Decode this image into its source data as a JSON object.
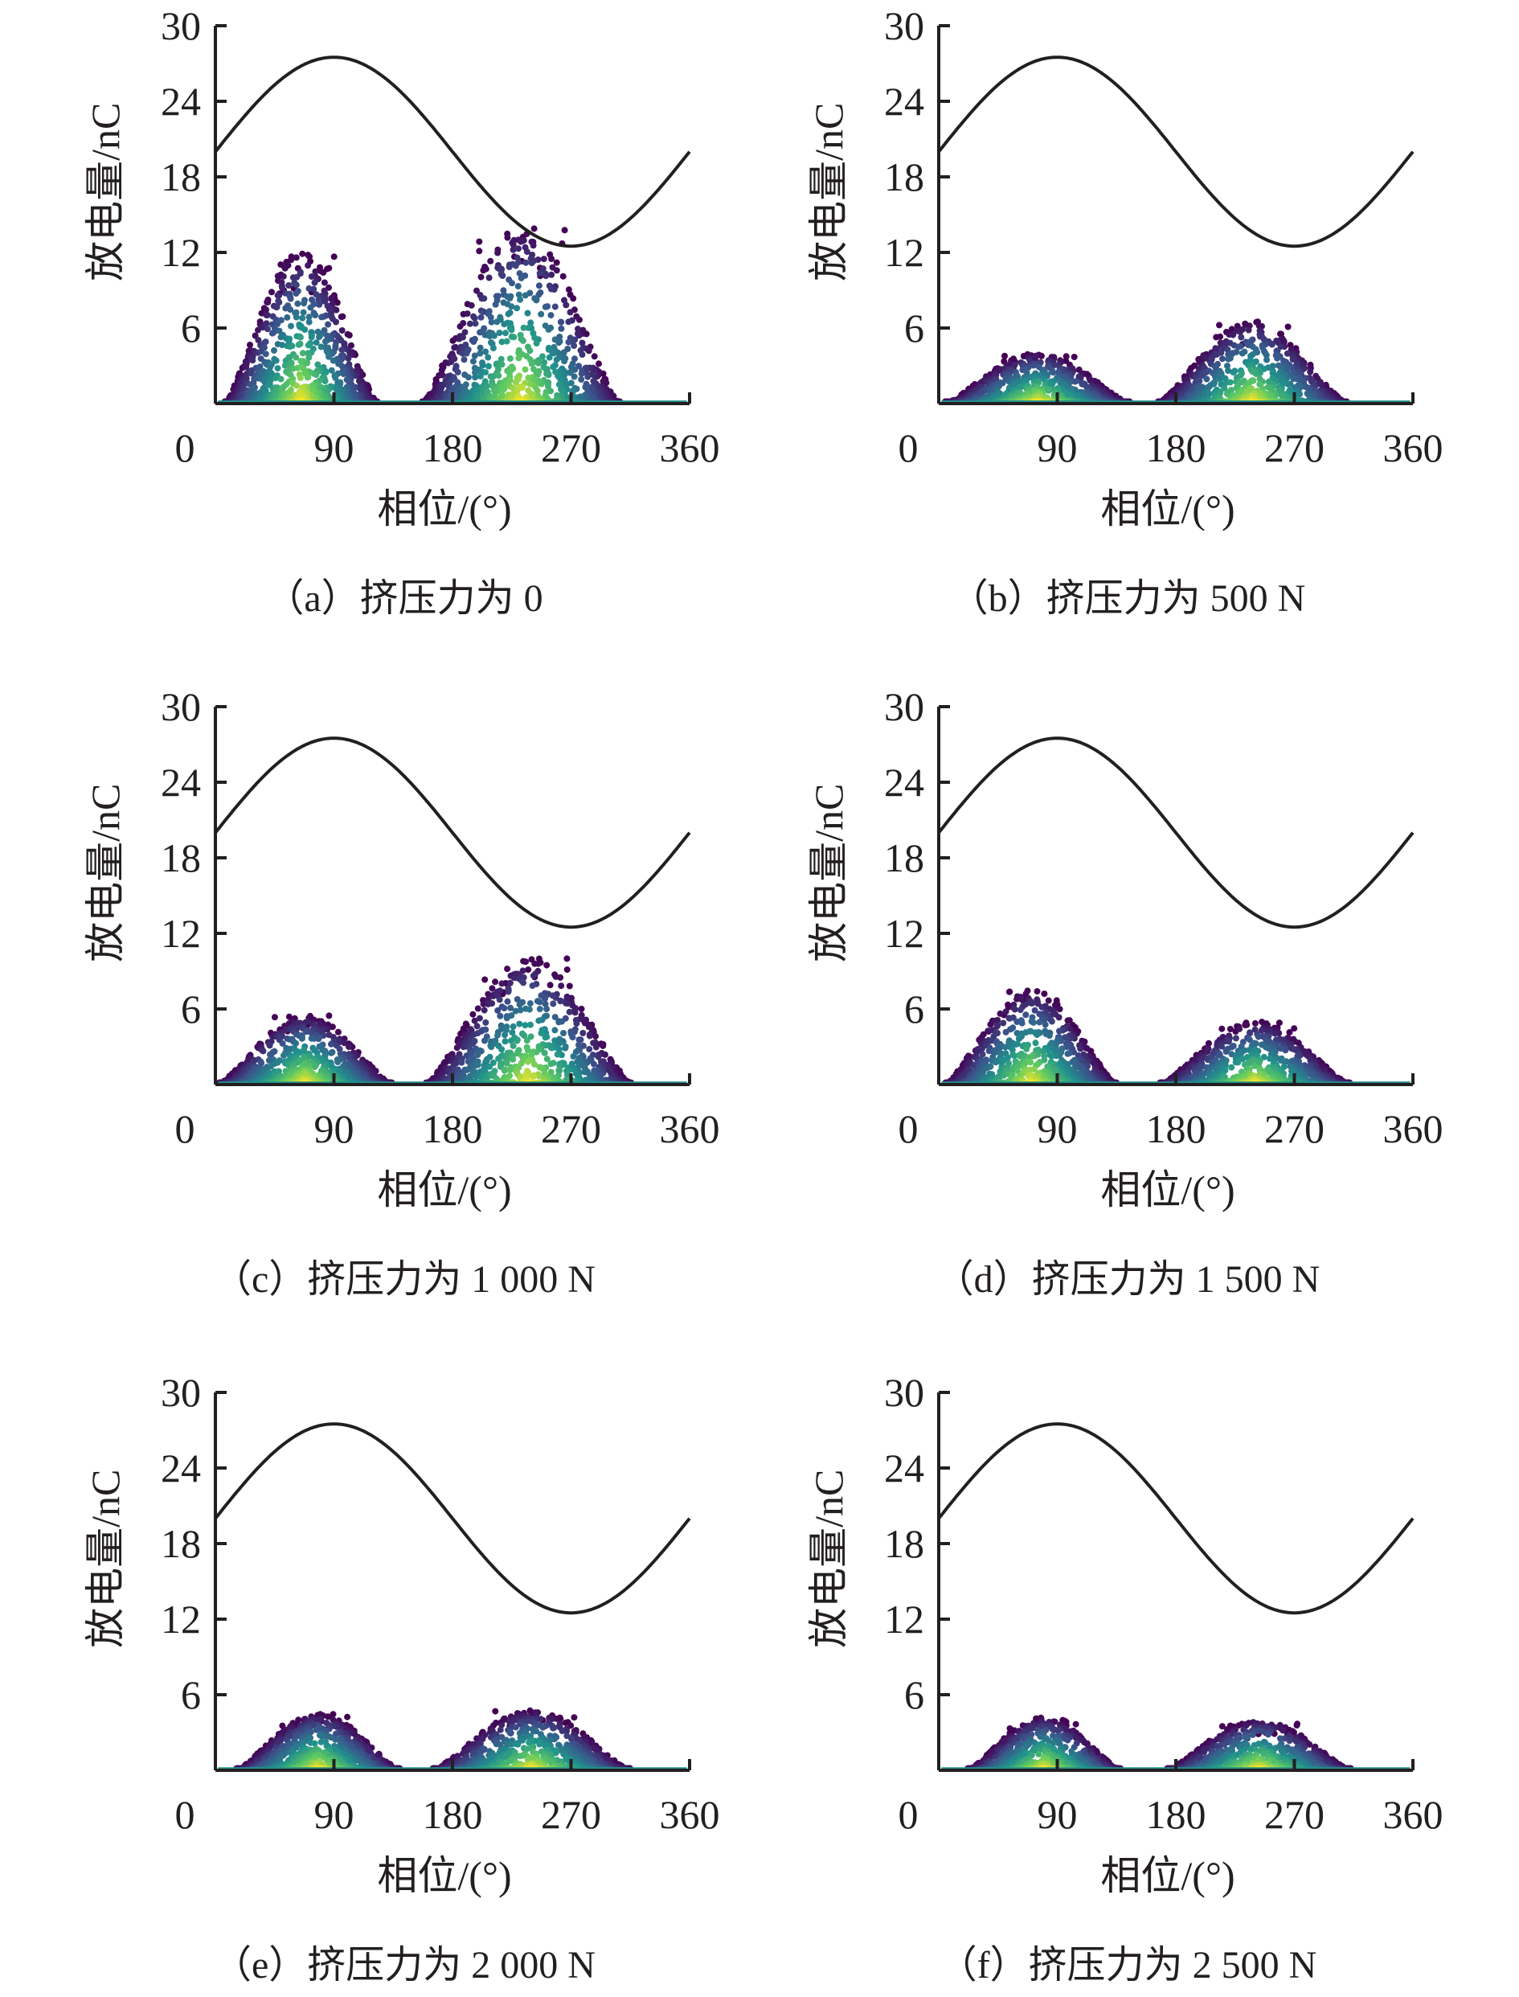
{
  "figure": {
    "panel_count": 6
  },
  "chart_data": [
    {
      "type": "scatter",
      "caption": "（a）挤压力为 0",
      "xlabel": "相位/(°)",
      "ylabel": "放电量/nC",
      "xlim": [
        0,
        360
      ],
      "ylim": [
        0,
        30
      ],
      "xticks": [
        "0",
        "90",
        "180",
        "270",
        "360"
      ],
      "yticks": [
        "6",
        "12",
        "18",
        "24",
        "30"
      ],
      "reference_curve": {
        "kind": "sine",
        "offset": 20,
        "amplitude": 7.5,
        "period": 360
      },
      "clusters": [
        {
          "center": 65,
          "half_width": 58,
          "peak": 12.0
        },
        {
          "center": 232,
          "half_width": 75,
          "peak": 14.0
        }
      ],
      "colormap": [
        "#440154",
        "#3b528b",
        "#21918c",
        "#5ec962",
        "#fde725"
      ]
    },
    {
      "type": "scatter",
      "caption": "（b）挤压力为 500 N",
      "xlabel": "相位/(°)",
      "ylabel": "放电量/nC",
      "xlim": [
        0,
        360
      ],
      "ylim": [
        0,
        30
      ],
      "xticks": [
        "0",
        "90",
        "180",
        "270",
        "360"
      ],
      "yticks": [
        "6",
        "12",
        "18",
        "24",
        "30"
      ],
      "reference_curve": {
        "kind": "sine",
        "offset": 20,
        "amplitude": 7.5,
        "period": 360
      },
      "clusters": [
        {
          "center": 75,
          "half_width": 70,
          "peak": 4.0
        },
        {
          "center": 238,
          "half_width": 72,
          "peak": 6.5
        }
      ],
      "colormap": [
        "#440154",
        "#3b528b",
        "#21918c",
        "#5ec962",
        "#fde725"
      ]
    },
    {
      "type": "scatter",
      "caption": "（c）挤压力为 1 000 N",
      "xlabel": "相位/(°)",
      "ylabel": "放电量/nC",
      "xlim": [
        0,
        360
      ],
      "ylim": [
        0,
        30
      ],
      "xticks": [
        "0",
        "90",
        "180",
        "270",
        "360"
      ],
      "yticks": [
        "6",
        "12",
        "18",
        "24",
        "30"
      ],
      "reference_curve": {
        "kind": "sine",
        "offset": 20,
        "amplitude": 7.5,
        "period": 360
      },
      "clusters": [
        {
          "center": 68,
          "half_width": 66,
          "peak": 5.5
        },
        {
          "center": 238,
          "half_width": 78,
          "peak": 10.0
        }
      ],
      "colormap": [
        "#440154",
        "#3b528b",
        "#21918c",
        "#5ec962",
        "#fde725"
      ]
    },
    {
      "type": "scatter",
      "caption": "（d）挤压力为 1 500 N",
      "xlabel": "相位/(°)",
      "ylabel": "放电量/nC",
      "xlim": [
        0,
        360
      ],
      "ylim": [
        0,
        30
      ],
      "xticks": [
        "0",
        "90",
        "180",
        "270",
        "360"
      ],
      "yticks": [
        "6",
        "12",
        "18",
        "24",
        "30"
      ],
      "reference_curve": {
        "kind": "sine",
        "offset": 20,
        "amplitude": 7.5,
        "period": 360
      },
      "clusters": [
        {
          "center": 70,
          "half_width": 65,
          "peak": 7.5
        },
        {
          "center": 240,
          "half_width": 72,
          "peak": 5.0
        }
      ],
      "colormap": [
        "#440154",
        "#3b528b",
        "#21918c",
        "#5ec962",
        "#fde725"
      ]
    },
    {
      "type": "scatter",
      "caption": "（e）挤压力为 2 000 N",
      "xlabel": "相位/(°)",
      "ylabel": "放电量/nC",
      "xlim": [
        0,
        360
      ],
      "ylim": [
        0,
        30
      ],
      "xticks": [
        "0",
        "90",
        "180",
        "270",
        "360"
      ],
      "yticks": [
        "6",
        "12",
        "18",
        "24",
        "30"
      ],
      "reference_curve": {
        "kind": "sine",
        "offset": 20,
        "amplitude": 7.5,
        "period": 360
      },
      "clusters": [
        {
          "center": 78,
          "half_width": 62,
          "peak": 4.5
        },
        {
          "center": 240,
          "half_width": 75,
          "peak": 4.8
        }
      ],
      "colormap": [
        "#440154",
        "#3b528b",
        "#21918c",
        "#5ec962",
        "#fde725"
      ]
    },
    {
      "type": "scatter",
      "caption": "（f）挤压力为 2 500 N",
      "xlabel": "相位/(°)",
      "ylabel": "放电量/nC",
      "xlim": [
        0,
        360
      ],
      "ylim": [
        0,
        30
      ],
      "xticks": [
        "0",
        "90",
        "180",
        "270",
        "360"
      ],
      "yticks": [
        "6",
        "12",
        "18",
        "24",
        "30"
      ],
      "reference_curve": {
        "kind": "sine",
        "offset": 20,
        "amplitude": 7.5,
        "period": 360
      },
      "clusters": [
        {
          "center": 80,
          "half_width": 58,
          "peak": 4.2
        },
        {
          "center": 243,
          "half_width": 70,
          "peak": 4.0
        }
      ],
      "colormap": [
        "#440154",
        "#3b528b",
        "#21918c",
        "#5ec962",
        "#fde725"
      ]
    }
  ]
}
